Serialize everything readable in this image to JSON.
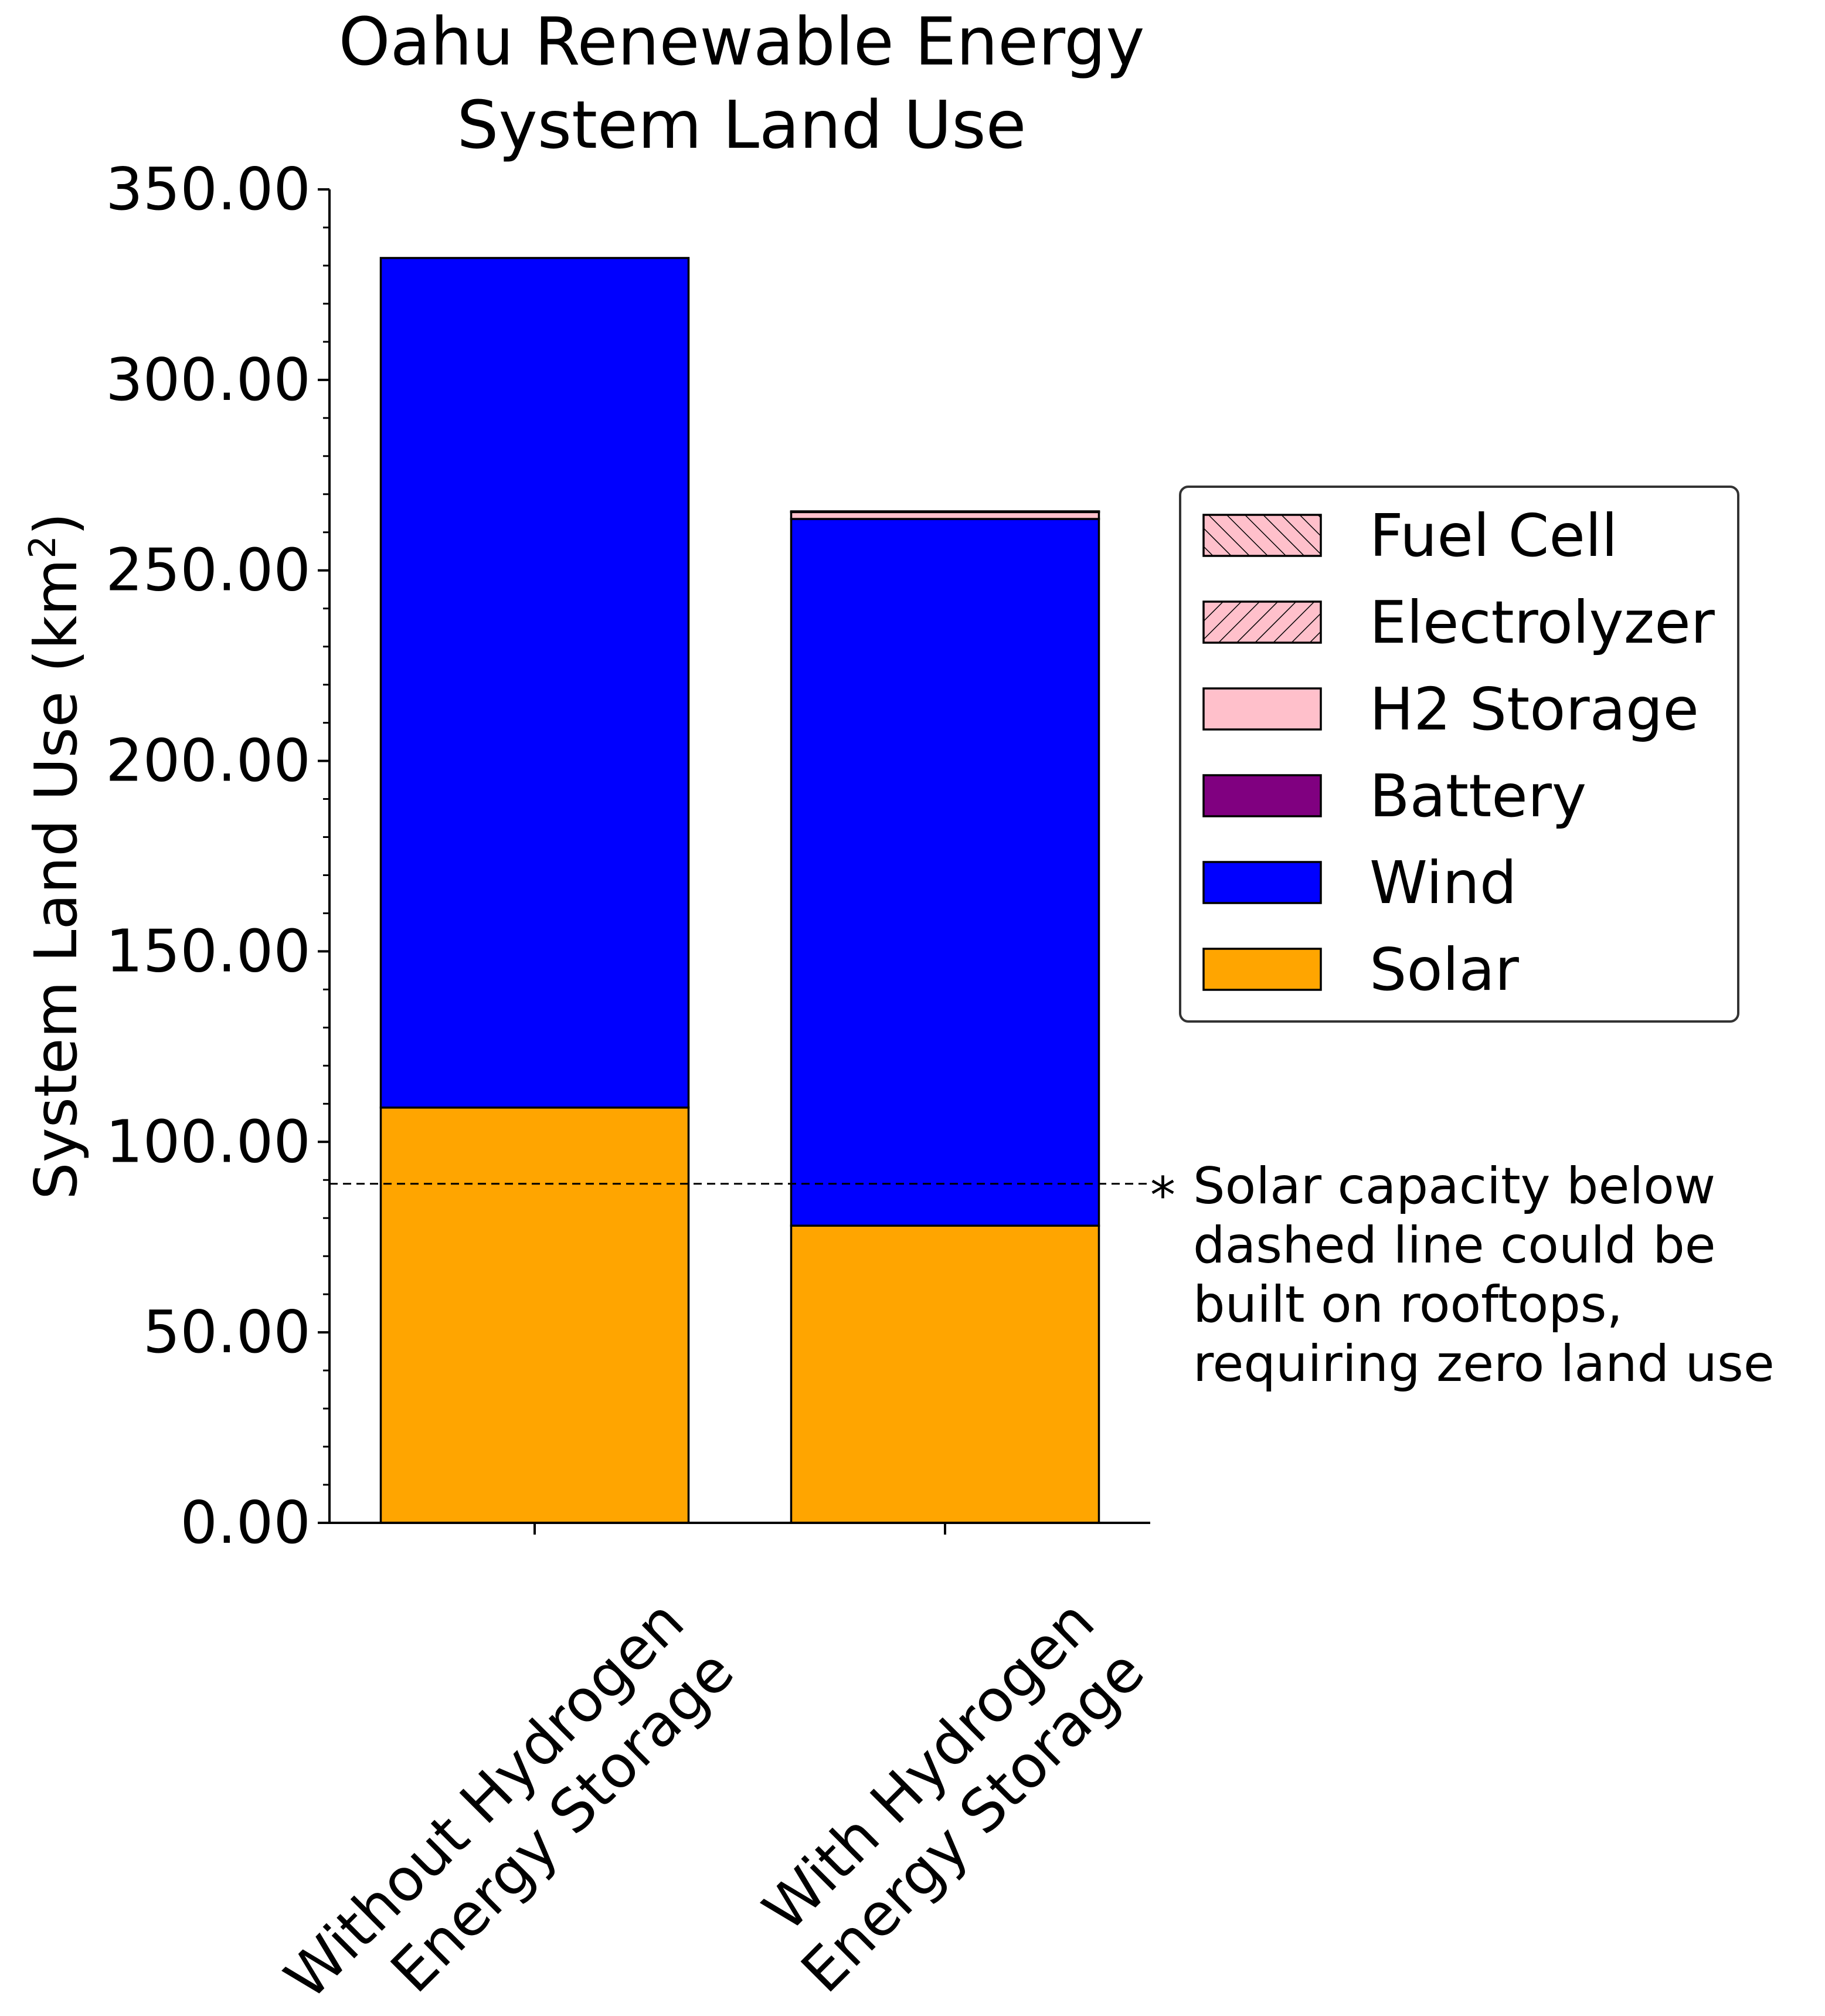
{
  "chart_data": {
    "type": "bar",
    "stacked": true,
    "title_lines": [
      "Oahu Renewable Energy",
      "System Land Use"
    ],
    "ylabel": "System Land Use (km",
    "ylabel_sup": "2",
    "ylabel_close": ")",
    "xlabel": "",
    "ylim": [
      0,
      350
    ],
    "y_ticks": [
      "0.00",
      "50.00",
      "100.00",
      "150.00",
      "200.00",
      "250.00",
      "300.00",
      "350.00"
    ],
    "y_tick_values": [
      0,
      50,
      100,
      150,
      200,
      250,
      300,
      350
    ],
    "categories": [
      [
        "Without Hydrogen",
        "Energy Storage"
      ],
      [
        "With Hydrogen",
        "Energy Storage"
      ]
    ],
    "series": [
      {
        "name": "Solar",
        "color": "#FFA500",
        "pattern": "none",
        "values": [
          109.0,
          78.0
        ]
      },
      {
        "name": "Wind",
        "color": "#0000FF",
        "pattern": "none",
        "values": [
          223.0,
          185.5
        ]
      },
      {
        "name": "Battery",
        "color": "#800080",
        "pattern": "none",
        "values": [
          0.0,
          0.0
        ]
      },
      {
        "name": "H2 Storage",
        "color": "#FFC0CB",
        "pattern": "none",
        "values": [
          0.0,
          1.8
        ]
      },
      {
        "name": "Electrolyzer",
        "color": "#FFC0CB",
        "pattern": "forward-hatch",
        "values": [
          0.0,
          0.1
        ]
      },
      {
        "name": "Fuel Cell",
        "color": "#FFC0CB",
        "pattern": "back-hatch",
        "values": [
          0.0,
          0.1
        ]
      }
    ],
    "legend_order": [
      "Fuel Cell",
      "Electrolyzer",
      "H2 Storage",
      "Battery",
      "Wind",
      "Solar"
    ],
    "legend_position": "right",
    "reference_line": {
      "value": 89.0,
      "style": "dashed"
    },
    "annotation": {
      "marker": "*",
      "lines": [
        "Solar capacity below",
        "dashed line could be",
        "built on rooftops,",
        "requiring zero land use"
      ]
    },
    "grid": false
  }
}
